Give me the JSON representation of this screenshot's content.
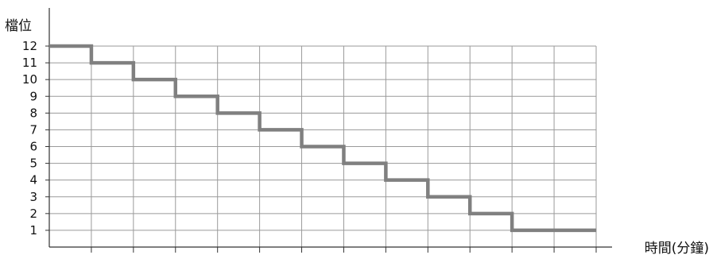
{
  "chart_data": {
    "type": "line",
    "line_style": "step",
    "title": "",
    "ylabel": "檔位",
    "xlabel": "時間(分鐘)",
    "ylim": [
      0,
      12
    ],
    "yticks": [
      1,
      2,
      3,
      4,
      5,
      6,
      7,
      8,
      9,
      10,
      11,
      12
    ],
    "x_ticks_count": 14,
    "grid": true,
    "series": [
      {
        "x": [
          0,
          1,
          2,
          3,
          4,
          5,
          6,
          7,
          8,
          9,
          10,
          11,
          12,
          13
        ],
        "values": [
          12,
          11,
          10,
          9,
          8,
          7,
          6,
          5,
          4,
          3,
          2,
          1,
          1,
          1
        ]
      }
    ],
    "colors": {
      "line": "#808080",
      "grid": "#9a9a9a",
      "axis": "#333333"
    }
  }
}
